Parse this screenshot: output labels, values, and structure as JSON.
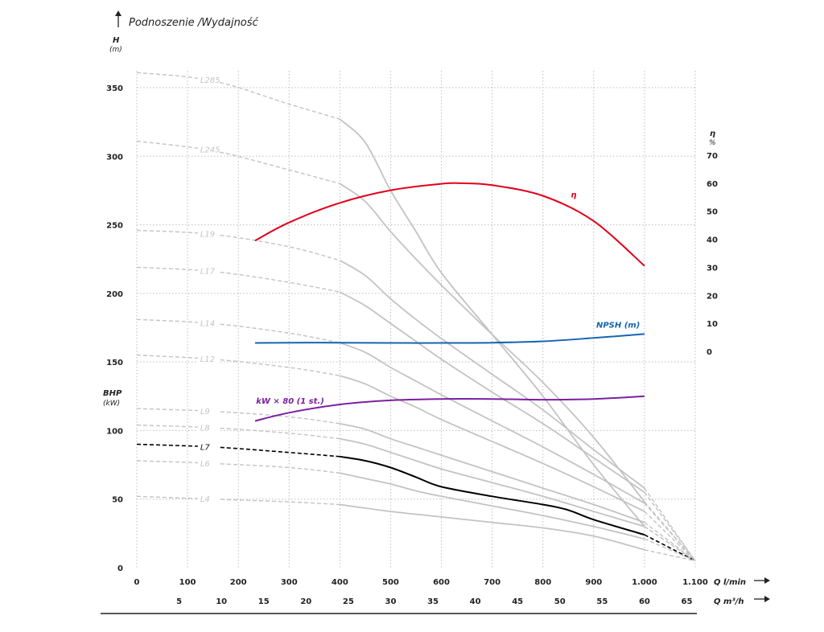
{
  "header": {
    "title": "Podnoszenie /Wydajność",
    "h_letter": "H",
    "h_unit": "(m)",
    "bhp_letter": "BHP",
    "bhp_unit": "(kW)",
    "eta_letter": "η",
    "eta_unit": "%",
    "q_lmin_label": "Q l/min",
    "q_m3h_label": "Q m³/h"
  },
  "chart_data": {
    "type": "line",
    "x_lmin": {
      "min": 0,
      "max": 1100,
      "ticks": [
        0,
        100,
        200,
        300,
        400,
        500,
        600,
        700,
        800,
        900,
        1000,
        1100
      ],
      "tick_labels": [
        "0",
        "100",
        "200",
        "300",
        "400",
        "500",
        "600",
        "700",
        "800",
        "900",
        "1.000",
        "1.100"
      ]
    },
    "x_m3h": {
      "ticks": [
        5,
        10,
        15,
        20,
        25,
        30,
        35,
        40,
        45,
        50,
        55,
        60,
        65
      ],
      "tick_labels": [
        "5",
        "10",
        "15",
        "20",
        "25",
        "30",
        "35",
        "40",
        "45",
        "50",
        "55",
        "60",
        "65"
      ]
    },
    "y_h": {
      "min": 0,
      "max": 350,
      "ticks": [
        0,
        50,
        100,
        150,
        200,
        250,
        300,
        350
      ],
      "tick_labels": [
        "0",
        "50",
        "100",
        "150",
        "200",
        "250",
        "300",
        "350"
      ]
    },
    "y_eta": {
      "min": 0,
      "max": 70,
      "ticks": [
        0,
        10,
        20,
        30,
        40,
        50,
        60,
        70
      ],
      "tick_labels": [
        "0",
        "10",
        "20",
        "30",
        "40",
        "50",
        "60",
        "70"
      ]
    },
    "grid": true,
    "pump_curves": [
      {
        "name": "L285",
        "highlight": false,
        "dashed": [
          [
            0,
            361
          ],
          [
            150,
            355
          ],
          [
            300,
            338
          ],
          [
            400,
            327
          ]
        ],
        "solid": [
          [
            400,
            327
          ],
          [
            450,
            310
          ],
          [
            500,
            275
          ],
          [
            550,
            245
          ],
          [
            600,
            215
          ],
          [
            700,
            170
          ],
          [
            800,
            125
          ],
          [
            900,
            75
          ],
          [
            1000,
            30
          ]
        ],
        "tail": [
          [
            1000,
            30
          ],
          [
            1100,
            5
          ]
        ]
      },
      {
        "name": "L245",
        "highlight": false,
        "dashed": [
          [
            0,
            311
          ],
          [
            150,
            304
          ],
          [
            300,
            290
          ],
          [
            400,
            280
          ]
        ],
        "solid": [
          [
            400,
            280
          ],
          [
            450,
            267
          ],
          [
            500,
            245
          ],
          [
            550,
            225
          ],
          [
            600,
            206
          ],
          [
            700,
            170
          ],
          [
            800,
            135
          ],
          [
            900,
            95
          ],
          [
            1000,
            48
          ]
        ],
        "tail": [
          [
            1000,
            48
          ],
          [
            1100,
            5
          ]
        ]
      },
      {
        "name": "L19",
        "highlight": false,
        "dashed": [
          [
            0,
            246
          ],
          [
            150,
            243
          ],
          [
            300,
            234
          ],
          [
            400,
            224
          ]
        ],
        "solid": [
          [
            400,
            224
          ],
          [
            450,
            213
          ],
          [
            500,
            196
          ],
          [
            550,
            181
          ],
          [
            600,
            167
          ],
          [
            700,
            141
          ],
          [
            800,
            115
          ],
          [
            900,
            86
          ],
          [
            1000,
            58
          ]
        ],
        "tail": [
          [
            1000,
            58
          ],
          [
            1100,
            5
          ]
        ]
      },
      {
        "name": "L17",
        "highlight": false,
        "dashed": [
          [
            0,
            219
          ],
          [
            150,
            216
          ],
          [
            300,
            208
          ],
          [
            400,
            201
          ]
        ],
        "solid": [
          [
            400,
            201
          ],
          [
            450,
            191
          ],
          [
            500,
            178
          ],
          [
            550,
            165
          ],
          [
            600,
            152
          ],
          [
            700,
            128
          ],
          [
            800,
            105
          ],
          [
            900,
            80
          ],
          [
            1000,
            55
          ]
        ],
        "tail": [
          [
            1000,
            55
          ],
          [
            1100,
            5
          ]
        ]
      },
      {
        "name": "L14",
        "highlight": false,
        "dashed": [
          [
            0,
            181
          ],
          [
            150,
            178
          ],
          [
            300,
            171
          ],
          [
            400,
            164
          ]
        ],
        "solid": [
          [
            400,
            164
          ],
          [
            450,
            157
          ],
          [
            500,
            146
          ],
          [
            550,
            136
          ],
          [
            600,
            126
          ],
          [
            700,
            107
          ],
          [
            800,
            88
          ],
          [
            900,
            68
          ],
          [
            1000,
            47
          ]
        ],
        "tail": [
          [
            1000,
            47
          ],
          [
            1100,
            5
          ]
        ]
      },
      {
        "name": "L12",
        "highlight": false,
        "dashed": [
          [
            0,
            155
          ],
          [
            150,
            152
          ],
          [
            300,
            146
          ],
          [
            400,
            140
          ]
        ],
        "solid": [
          [
            400,
            140
          ],
          [
            450,
            134
          ],
          [
            500,
            125
          ],
          [
            550,
            117
          ],
          [
            600,
            108
          ],
          [
            700,
            92
          ],
          [
            800,
            76
          ],
          [
            900,
            59
          ],
          [
            1000,
            41
          ]
        ],
        "tail": [
          [
            1000,
            41
          ],
          [
            1100,
            5
          ]
        ]
      },
      {
        "name": "L9",
        "highlight": false,
        "dashed": [
          [
            0,
            116
          ],
          [
            150,
            114
          ],
          [
            300,
            110
          ],
          [
            400,
            105
          ]
        ],
        "solid": [
          [
            400,
            105
          ],
          [
            450,
            101
          ],
          [
            500,
            94
          ],
          [
            550,
            88
          ],
          [
            600,
            82
          ],
          [
            700,
            70
          ],
          [
            800,
            58
          ],
          [
            900,
            46
          ],
          [
            1000,
            33
          ]
        ],
        "tail": [
          [
            1000,
            33
          ],
          [
            1100,
            5
          ]
        ]
      },
      {
        "name": "L8",
        "highlight": false,
        "dashed": [
          [
            0,
            104
          ],
          [
            150,
            102
          ],
          [
            300,
            98
          ],
          [
            400,
            94
          ]
        ],
        "solid": [
          [
            400,
            94
          ],
          [
            450,
            90
          ],
          [
            500,
            84
          ],
          [
            550,
            78
          ],
          [
            600,
            72
          ],
          [
            700,
            62
          ],
          [
            800,
            52
          ],
          [
            900,
            41
          ],
          [
            1000,
            30
          ]
        ],
        "tail": [
          [
            1000,
            30
          ],
          [
            1100,
            5
          ]
        ]
      },
      {
        "name": "L7",
        "highlight": true,
        "dashed": [
          [
            0,
            90
          ],
          [
            150,
            88
          ],
          [
            300,
            84
          ],
          [
            400,
            81
          ]
        ],
        "solid": [
          [
            400,
            81
          ],
          [
            450,
            78
          ],
          [
            500,
            73
          ],
          [
            550,
            66
          ],
          [
            600,
            59
          ],
          [
            700,
            52
          ],
          [
            800,
            46
          ],
          [
            850,
            42
          ],
          [
            900,
            35
          ],
          [
            1000,
            24
          ]
        ],
        "tail": [
          [
            1000,
            24
          ],
          [
            1100,
            5
          ]
        ]
      },
      {
        "name": "L6",
        "highlight": false,
        "dashed": [
          [
            0,
            78
          ],
          [
            150,
            76
          ],
          [
            300,
            73
          ],
          [
            400,
            69
          ]
        ],
        "solid": [
          [
            400,
            69
          ],
          [
            450,
            65
          ],
          [
            500,
            61
          ],
          [
            550,
            56
          ],
          [
            600,
            52
          ],
          [
            700,
            45
          ],
          [
            800,
            38
          ],
          [
            900,
            30
          ],
          [
            1000,
            21
          ]
        ],
        "tail": [
          [
            1000,
            21
          ],
          [
            1100,
            5
          ]
        ]
      },
      {
        "name": "L4",
        "highlight": false,
        "dashed": [
          [
            0,
            52
          ],
          [
            150,
            50
          ],
          [
            300,
            48
          ],
          [
            400,
            46
          ]
        ],
        "solid": [
          [
            400,
            46
          ],
          [
            500,
            41
          ],
          [
            600,
            37
          ],
          [
            700,
            33
          ],
          [
            800,
            29
          ],
          [
            900,
            23
          ],
          [
            1000,
            13
          ]
        ],
        "tail": [
          [
            1000,
            13
          ],
          [
            1100,
            5
          ]
        ]
      }
    ],
    "efficiency": {
      "name": "η",
      "axis": "right",
      "color": "#e2001a",
      "points": [
        [
          233,
          39.5
        ],
        [
          300,
          46
        ],
        [
          400,
          53
        ],
        [
          500,
          57.5
        ],
        [
          600,
          59.8
        ],
        [
          640,
          60
        ],
        [
          700,
          59.3
        ],
        [
          800,
          55.5
        ],
        [
          900,
          46.5
        ],
        [
          1000,
          30.5
        ]
      ]
    },
    "npsh": {
      "name": "NPSH (m)",
      "axis": "right",
      "color": "#1565b3",
      "points": [
        [
          233,
          3
        ],
        [
          300,
          3.1
        ],
        [
          400,
          3.1
        ],
        [
          500,
          3
        ],
        [
          600,
          3
        ],
        [
          700,
          3.1
        ],
        [
          800,
          3.6
        ],
        [
          900,
          4.8
        ],
        [
          1000,
          6.2
        ]
      ]
    },
    "power": {
      "name": "kW × 80 (1 st.)",
      "axis": "left",
      "color": "#7b1fa2",
      "points": [
        [
          233,
          107
        ],
        [
          300,
          113
        ],
        [
          400,
          119
        ],
        [
          500,
          122
        ],
        [
          600,
          123
        ],
        [
          700,
          123
        ],
        [
          800,
          122.5
        ],
        [
          900,
          123
        ],
        [
          1000,
          125
        ]
      ]
    }
  }
}
